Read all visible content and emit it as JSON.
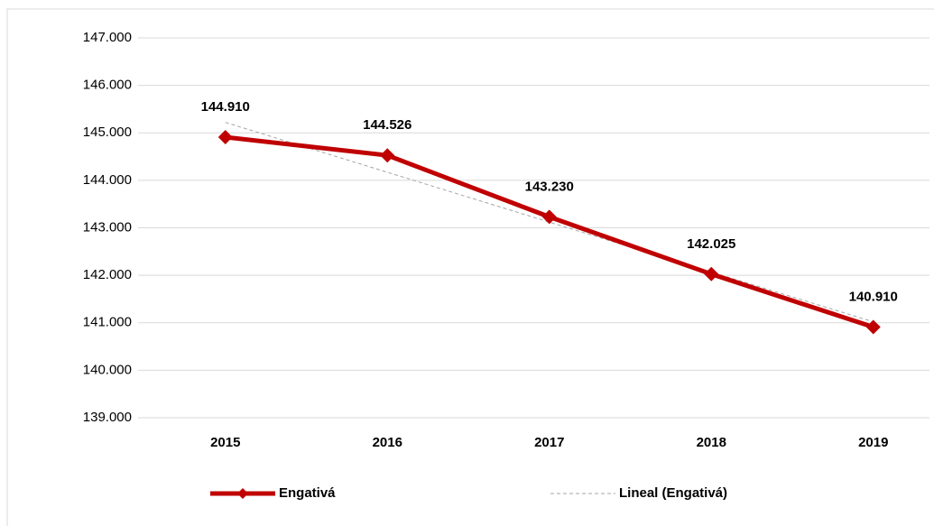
{
  "chart_data": {
    "type": "line",
    "categories": [
      "2015",
      "2016",
      "2017",
      "2018",
      "2019"
    ],
    "series": [
      {
        "name": "Engativá",
        "color": "#c00000",
        "values": [
          144910,
          144526,
          143230,
          142025,
          140910
        ],
        "value_labels": [
          "144.910",
          "144.526",
          "143.230",
          "142.025",
          "140.910"
        ],
        "marker": "diamond"
      },
      {
        "name": "Lineal (Engativá)",
        "color": "#a6a6a6",
        "values": [
          145220,
          144170,
          143120,
          142070,
          141020
        ],
        "dashed": true
      }
    ],
    "ylim": [
      139000,
      147000
    ],
    "yticks": [
      {
        "value": 139000,
        "label": "139.000"
      },
      {
        "value": 140000,
        "label": "140.000"
      },
      {
        "value": 141000,
        "label": "141.000"
      },
      {
        "value": 142000,
        "label": "142.000"
      },
      {
        "value": 143000,
        "label": "143.000"
      },
      {
        "value": 144000,
        "label": "144.000"
      },
      {
        "value": 145000,
        "label": "145.000"
      },
      {
        "value": 146000,
        "label": "146.000"
      },
      {
        "value": 147000,
        "label": "147.000"
      }
    ],
    "grid": true,
    "legend": "bottom"
  }
}
